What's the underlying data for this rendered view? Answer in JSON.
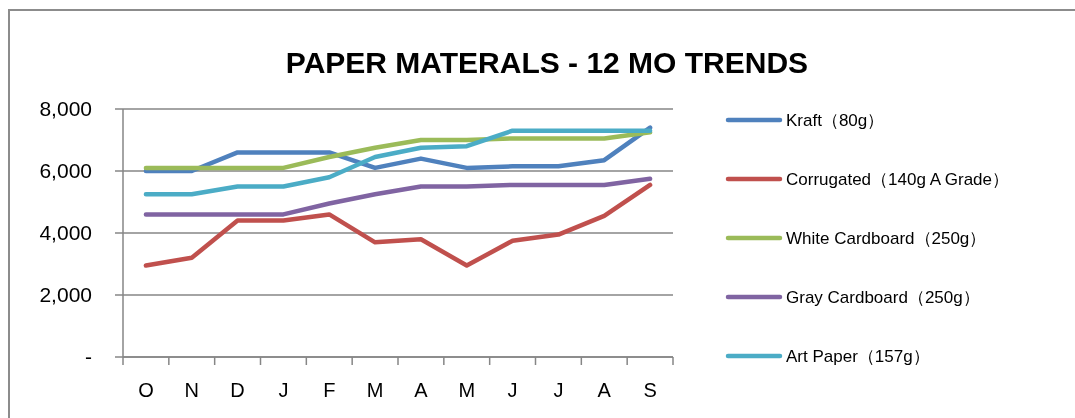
{
  "chart_data": {
    "type": "line",
    "title": "PAPER MATERALS - 12 MO TRENDS",
    "categories": [
      "O",
      "N",
      "D",
      "J",
      "F",
      "M",
      "A",
      "M",
      "J",
      "J",
      "A",
      "S"
    ],
    "series": [
      {
        "name": "Kraft（80g）",
        "color": "#4f81bd",
        "values": [
          6000,
          6000,
          6600,
          6600,
          6600,
          6100,
          6400,
          6100,
          6150,
          6150,
          6350,
          7400
        ]
      },
      {
        "name": "Corrugated（140g A Grade）",
        "color": "#c0504d",
        "values": [
          2950,
          3200,
          4400,
          4400,
          4600,
          3700,
          3800,
          2950,
          3750,
          3950,
          4550,
          5550
        ]
      },
      {
        "name": "White Cardboard（250g）",
        "color": "#9bbb59",
        "values": [
          6100,
          6100,
          6100,
          6100,
          6450,
          6750,
          7000,
          7000,
          7050,
          7050,
          7050,
          7250
        ]
      },
      {
        "name": "Gray Cardboard（250g）",
        "color": "#8064a2",
        "values": [
          4600,
          4600,
          4600,
          4600,
          4950,
          5250,
          5500,
          5500,
          5550,
          5550,
          5550,
          5750
        ]
      },
      {
        "name": "Art Paper（157g）",
        "color": "#4bacc6",
        "values": [
          5250,
          5250,
          5500,
          5500,
          5800,
          6450,
          6750,
          6800,
          7300,
          7300,
          7300,
          7300
        ]
      }
    ],
    "ylim": [
      0,
      8000
    ],
    "yticks": [
      {
        "value": 0,
        "label": "-"
      },
      {
        "value": 2000,
        "label": "2,000"
      },
      {
        "value": 4000,
        "label": "4,000"
      },
      {
        "value": 6000,
        "label": "6,000"
      },
      {
        "value": 8000,
        "label": "8,000"
      }
    ],
    "grid": "y",
    "legend": "right",
    "line_style": "solid"
  }
}
